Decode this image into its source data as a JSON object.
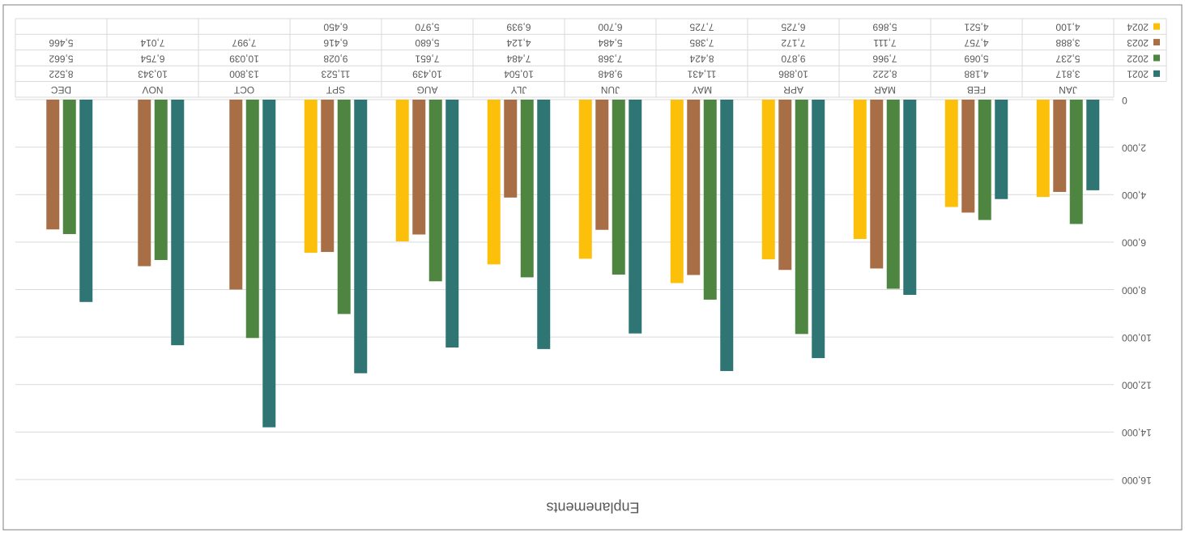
{
  "chart_data": {
    "type": "bar",
    "title": "Enplanements",
    "categories": [
      "JAN",
      "FEB",
      "MAR",
      "APR",
      "MAY",
      "JUN",
      "JLY",
      "AUG",
      "SPT",
      "OCT",
      "NOV",
      "DEC"
    ],
    "series": [
      {
        "name": "2021",
        "color": "#2e7574",
        "values": [
          3817,
          4188,
          8222,
          10886,
          11431,
          9848,
          10504,
          10439,
          11523,
          13800,
          10343,
          8522
        ],
        "value_labels": [
          "3,817",
          "4,188",
          "8,222",
          "10,886",
          "11,431",
          "9,848",
          "10,504",
          "10,439",
          "11,523",
          "13,800",
          "10,343",
          "8,522"
        ]
      },
      {
        "name": "2022",
        "color": "#4e8540",
        "values": [
          5237,
          5069,
          7966,
          9870,
          8424,
          7368,
          7484,
          7651,
          9028,
          10039,
          6754,
          5662
        ],
        "value_labels": [
          "5,237",
          "5,069",
          "7,966",
          "9,870",
          "8,424",
          "7,368",
          "7,484",
          "7,651",
          "9,028",
          "10,039",
          "6,754",
          "5,662"
        ]
      },
      {
        "name": "2023",
        "color": "#a86f47",
        "values": [
          3888,
          4757,
          7111,
          7172,
          7385,
          5484,
          4124,
          5680,
          6416,
          7997,
          7014,
          5466
        ],
        "value_labels": [
          "3,888",
          "4,757",
          "7,111",
          "7,172",
          "7,385",
          "5,484",
          "4,124",
          "5,680",
          "6,416",
          "7,997",
          "7,014",
          "5,466"
        ]
      },
      {
        "name": "2024",
        "color": "#fcc00b",
        "values": [
          4100,
          4521,
          5869,
          6725,
          7725,
          6700,
          6939,
          5970,
          6450,
          null,
          null,
          null
        ],
        "value_labels": [
          "4,100",
          "4,521",
          "5,869",
          "6,725",
          "7,725",
          "6,700",
          "6,939",
          "5,970",
          "6,450",
          null,
          null,
          null
        ]
      }
    ],
    "ylim": [
      0,
      16000
    ],
    "yticks": [
      0,
      {
        "value": 2000,
        "label": "2,000"
      },
      {
        "value": 4000,
        "label": "4,000"
      },
      {
        "value": 6000,
        "label": "6,000"
      },
      {
        "value": 8000,
        "label": "8,000"
      },
      {
        "value": 10000,
        "label": "10,000"
      },
      {
        "value": 12000,
        "label": "12,000"
      },
      {
        "value": 14000,
        "label": "14,000"
      },
      {
        "value": 16000,
        "label": "16,000"
      }
    ],
    "grid": true
  }
}
